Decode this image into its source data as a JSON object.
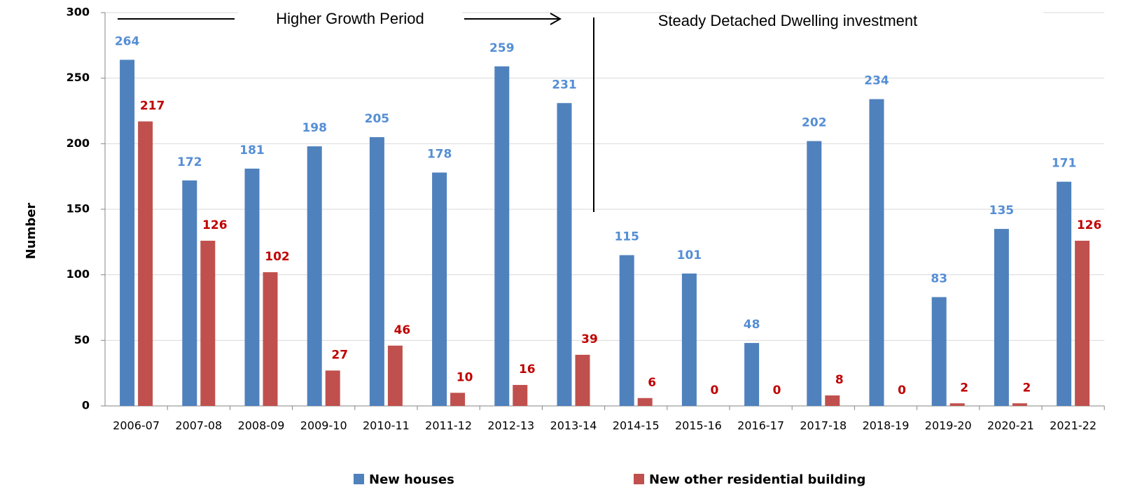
{
  "chart_data": {
    "type": "bar",
    "y_label": "Number",
    "annotations": [
      "Higher Growth Period",
      "Steady Detached Dwelling investment"
    ],
    "categories": [
      "2006-07",
      "2007-08",
      "2008-09",
      "2009-10",
      "2010-11",
      "2011-12",
      "2012-13",
      "2013-14",
      "2014-15",
      "2015-16",
      "2016-17",
      "2017-18",
      "2018-19",
      "2019-20",
      "2020-21",
      "2021-22"
    ],
    "series": [
      {
        "name": "New houses",
        "color": "#4f81bd",
        "label_color": "#558ed5",
        "values": [
          264,
          172,
          181,
          198,
          205,
          178,
          259,
          231,
          115,
          101,
          48,
          202,
          234,
          83,
          135,
          171
        ]
      },
      {
        "name": "New other residential building",
        "color": "#c0504d",
        "label_color": "#c00000",
        "values": [
          217,
          126,
          102,
          27,
          46,
          10,
          16,
          39,
          6,
          0,
          0,
          8,
          0,
          2,
          2,
          126
        ]
      }
    ],
    "ylim": [
      0,
      300
    ],
    "yticks": [
      0,
      50,
      100,
      150,
      200,
      250,
      300
    ],
    "grid": true,
    "legend": "bottom"
  }
}
